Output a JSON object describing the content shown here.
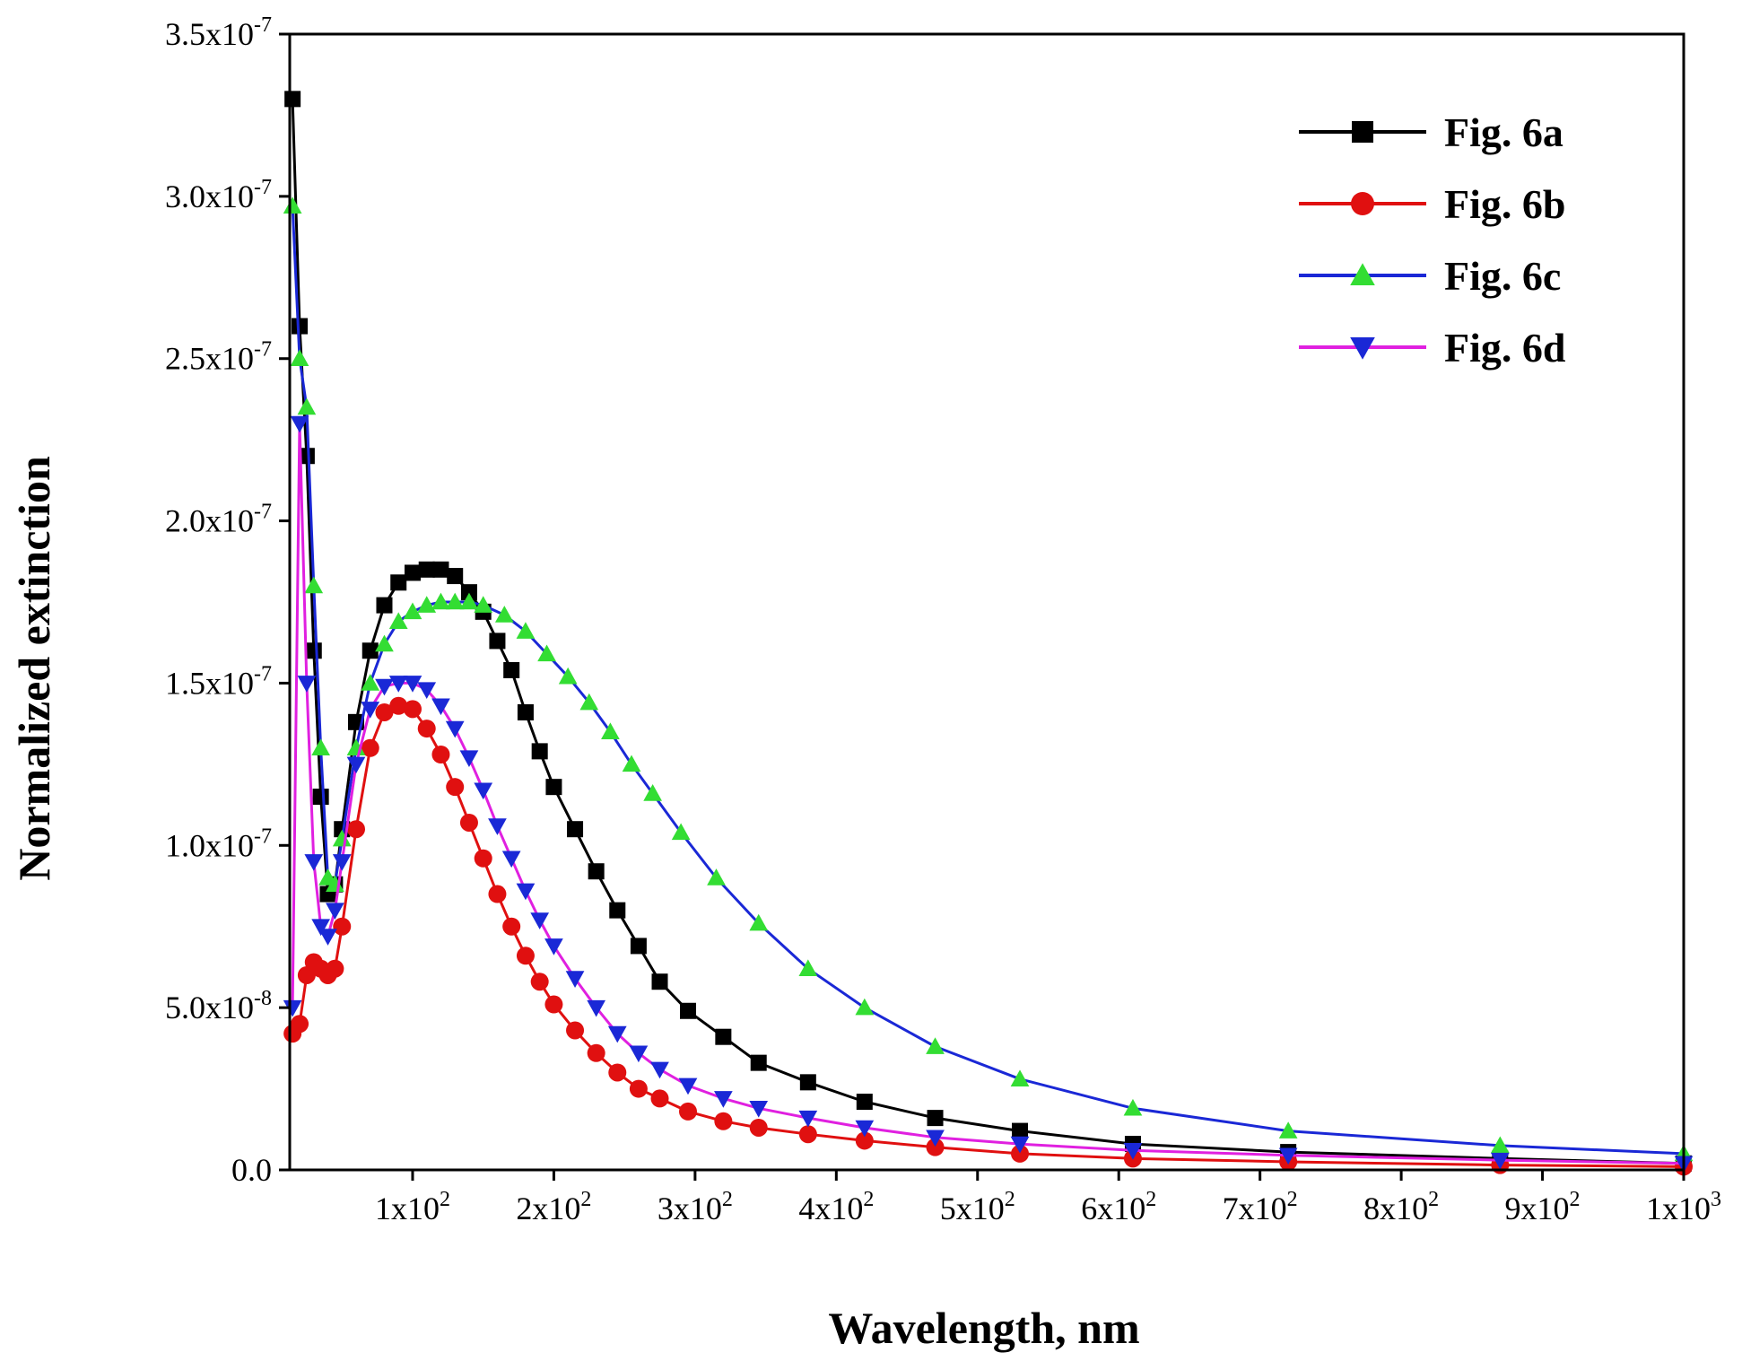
{
  "chart_data": {
    "type": "line",
    "title": "",
    "xlabel": "Wavelength, nm",
    "ylabel": "Normalized extinction",
    "xlim": [
      13,
      1000
    ],
    "ylim": [
      0,
      3.5e-07
    ],
    "grid": false,
    "legend_position": "top-right",
    "x_ticks": [
      {
        "value": 100,
        "mant": "1x10",
        "exp": "2"
      },
      {
        "value": 200,
        "mant": "2x10",
        "exp": "2"
      },
      {
        "value": 300,
        "mant": "3x10",
        "exp": "2"
      },
      {
        "value": 400,
        "mant": "4x10",
        "exp": "2"
      },
      {
        "value": 500,
        "mant": "5x10",
        "exp": "2"
      },
      {
        "value": 600,
        "mant": "6x10",
        "exp": "2"
      },
      {
        "value": 700,
        "mant": "7x10",
        "exp": "2"
      },
      {
        "value": 800,
        "mant": "8x10",
        "exp": "2"
      },
      {
        "value": 900,
        "mant": "9x10",
        "exp": "2"
      },
      {
        "value": 1000,
        "mant": "1x10",
        "exp": "3"
      }
    ],
    "y_ticks": [
      {
        "value": 0,
        "mant": "0.0",
        "exp": ""
      },
      {
        "value": 5e-08,
        "mant": "5.0x10",
        "exp": "-8"
      },
      {
        "value": 1e-07,
        "mant": "1.0x10",
        "exp": "-7"
      },
      {
        "value": 1.5e-07,
        "mant": "1.5x10",
        "exp": "-7"
      },
      {
        "value": 2e-07,
        "mant": "2.0x10",
        "exp": "-7"
      },
      {
        "value": 2.5e-07,
        "mant": "2.5x10",
        "exp": "-7"
      },
      {
        "value": 3e-07,
        "mant": "3.0x10",
        "exp": "-7"
      },
      {
        "value": 3.5e-07,
        "mant": "3.5x10",
        "exp": "-7"
      }
    ],
    "series": [
      {
        "name": "Fig. 6a",
        "marker": "square",
        "line_color": "#000000",
        "marker_color": "#000000",
        "x": [
          15,
          20,
          25,
          30,
          35,
          40,
          45,
          50,
          60,
          70,
          80,
          90,
          100,
          110,
          120,
          130,
          140,
          150,
          160,
          170,
          180,
          190,
          200,
          215,
          230,
          245,
          260,
          275,
          295,
          320,
          345,
          380,
          420,
          470,
          530,
          610,
          720,
          870,
          1000
        ],
        "y": [
          3.3e-07,
          2.6e-07,
          2.2e-07,
          1.6e-07,
          1.15e-07,
          8.5e-08,
          8.8e-08,
          1.05e-07,
          1.38e-07,
          1.6e-07,
          1.74e-07,
          1.81e-07,
          1.84e-07,
          1.85e-07,
          1.85e-07,
          1.83e-07,
          1.78e-07,
          1.72e-07,
          1.63e-07,
          1.54e-07,
          1.41e-07,
          1.29e-07,
          1.18e-07,
          1.05e-07,
          9.2e-08,
          8e-08,
          6.9e-08,
          5.8e-08,
          4.9e-08,
          4.1e-08,
          3.3e-08,
          2.7e-08,
          2.1e-08,
          1.6e-08,
          1.2e-08,
          8e-09,
          5.5e-09,
          3.5e-09,
          2e-09
        ]
      },
      {
        "name": "Fig. 6b",
        "marker": "circle",
        "line_color": "#e01010",
        "marker_color": "#e01010",
        "x": [
          15,
          20,
          25,
          30,
          35,
          40,
          45,
          50,
          60,
          70,
          80,
          90,
          100,
          110,
          120,
          130,
          140,
          150,
          160,
          170,
          180,
          190,
          200,
          215,
          230,
          245,
          260,
          275,
          295,
          320,
          345,
          380,
          420,
          470,
          530,
          610,
          720,
          870,
          1000
        ],
        "y": [
          4.2e-08,
          4.5e-08,
          6e-08,
          6.4e-08,
          6.2e-08,
          6e-08,
          6.2e-08,
          7.5e-08,
          1.05e-07,
          1.3e-07,
          1.41e-07,
          1.43e-07,
          1.42e-07,
          1.36e-07,
          1.28e-07,
          1.18e-07,
          1.07e-07,
          9.6e-08,
          8.5e-08,
          7.5e-08,
          6.6e-08,
          5.8e-08,
          5.1e-08,
          4.3e-08,
          3.6e-08,
          3e-08,
          2.5e-08,
          2.2e-08,
          1.8e-08,
          1.5e-08,
          1.3e-08,
          1.1e-08,
          9e-09,
          7e-09,
          5e-09,
          3.5e-09,
          2.5e-09,
          1.5e-09,
          1e-09
        ]
      },
      {
        "name": "Fig. 6c",
        "marker": "triangle-up",
        "line_color": "#1a28d6",
        "marker_color": "#33dd33",
        "x": [
          15,
          20,
          25,
          30,
          35,
          40,
          45,
          50,
          60,
          70,
          80,
          90,
          100,
          110,
          120,
          130,
          140,
          150,
          165,
          180,
          195,
          210,
          225,
          240,
          255,
          270,
          290,
          315,
          345,
          380,
          420,
          470,
          530,
          610,
          720,
          870,
          1000
        ],
        "y": [
          2.97e-07,
          2.5e-07,
          2.35e-07,
          1.8e-07,
          1.3e-07,
          9e-08,
          8.8e-08,
          1.02e-07,
          1.3e-07,
          1.5e-07,
          1.62e-07,
          1.69e-07,
          1.72e-07,
          1.74e-07,
          1.75e-07,
          1.75e-07,
          1.75e-07,
          1.74e-07,
          1.71e-07,
          1.66e-07,
          1.59e-07,
          1.52e-07,
          1.44e-07,
          1.35e-07,
          1.25e-07,
          1.16e-07,
          1.04e-07,
          9e-08,
          7.6e-08,
          6.2e-08,
          5e-08,
          3.8e-08,
          2.8e-08,
          1.9e-08,
          1.2e-08,
          7.5e-09,
          5e-09
        ]
      },
      {
        "name": "Fig. 6d",
        "marker": "triangle-down",
        "line_color": "#e020e0",
        "marker_color": "#1a28d6",
        "x": [
          15,
          20,
          25,
          30,
          35,
          40,
          45,
          50,
          60,
          70,
          80,
          90,
          100,
          110,
          120,
          130,
          140,
          150,
          160,
          170,
          180,
          190,
          200,
          215,
          230,
          245,
          260,
          275,
          295,
          320,
          345,
          380,
          420,
          470,
          530,
          610,
          720,
          870,
          1000
        ],
        "y": [
          5e-08,
          2.3e-07,
          1.5e-07,
          9.5e-08,
          7.5e-08,
          7.2e-08,
          8e-08,
          9.5e-08,
          1.25e-07,
          1.42e-07,
          1.49e-07,
          1.5e-07,
          1.5e-07,
          1.48e-07,
          1.43e-07,
          1.36e-07,
          1.27e-07,
          1.17e-07,
          1.06e-07,
          9.6e-08,
          8.6e-08,
          7.7e-08,
          6.9e-08,
          5.9e-08,
          5e-08,
          4.2e-08,
          3.6e-08,
          3.1e-08,
          2.6e-08,
          2.2e-08,
          1.9e-08,
          1.6e-08,
          1.3e-08,
          1e-08,
          8e-09,
          6e-09,
          4.5e-09,
          3e-09,
          2e-09
        ]
      }
    ]
  }
}
